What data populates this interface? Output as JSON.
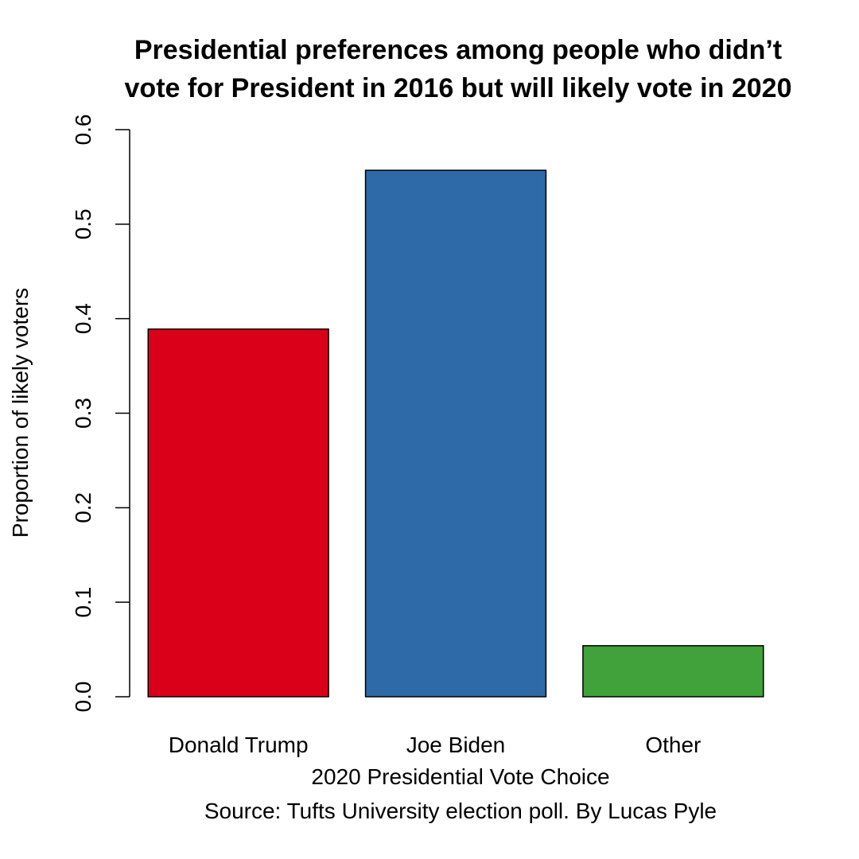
{
  "chart_data": {
    "type": "bar",
    "title_lines": [
      "Presidential preferences among people who didn’t",
      "vote for President in 2016 but will likely vote in 2020"
    ],
    "categories": [
      "Donald Trump",
      "Joe Biden",
      "Other"
    ],
    "values": [
      0.389,
      0.557,
      0.054
    ],
    "colors": [
      "#DA001A",
      "#2E6AA8",
      "#41A13A"
    ],
    "xlabel": "2020 Presidential Vote Choice",
    "subtitle": "Source: Tufts University election poll. By Lucas Pyle",
    "ylabel": "Proportion of likely voters",
    "ylim": [
      0,
      0.6
    ],
    "yticks": [
      "0.0",
      "0.1",
      "0.2",
      "0.3",
      "0.4",
      "0.5",
      "0.6"
    ],
    "grid": false,
    "legend": "none"
  }
}
